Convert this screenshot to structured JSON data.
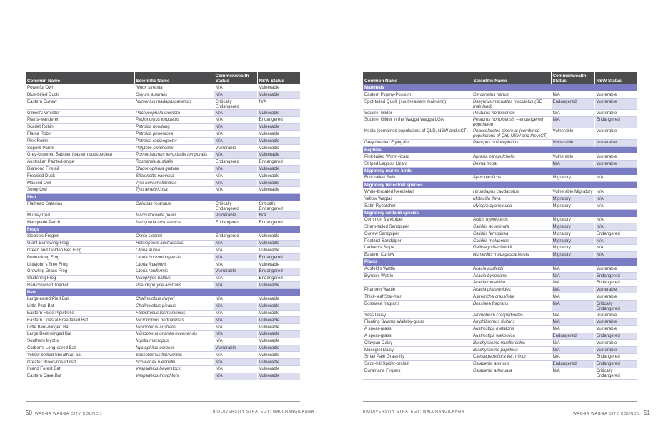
{
  "left_page": {
    "columns": [
      "Common Name",
      "Scientific Name",
      "Commonwealth Status",
      "NSW Status"
    ],
    "rows": [
      {
        "t": "r",
        "c": [
          "Powerful Owl",
          "Ninox strenua",
          "N/A",
          "Vulnerable"
        ]
      },
      {
        "t": "r",
        "c": [
          "Blue-billed Duck",
          "Oxyura australis",
          "N/A",
          "Vulnerable"
        ]
      },
      {
        "t": "r",
        "c": [
          "Eastern Curlew",
          "Numenius madagascariensis",
          "Critically Endangered",
          "N/A"
        ]
      },
      {
        "t": "r",
        "c": [
          "Gilbert's Whistler",
          "Pachycephala inornata",
          "N/A",
          "Vulnerable"
        ]
      },
      {
        "t": "r",
        "c": [
          "Plains-wanderer",
          "Pedionomus torquatus",
          "N/A",
          "Endangered"
        ]
      },
      {
        "t": "r",
        "c": [
          "Scarlet Robin",
          "Petroica boodang",
          "N/A",
          "Vulnerable"
        ]
      },
      {
        "t": "r",
        "c": [
          "Flame Robin",
          "Petroica phoenicea",
          "N/A",
          "Vulnerable"
        ]
      },
      {
        "t": "r",
        "c": [
          "Pink Robin",
          "Petroica rodinogaster",
          "N/A",
          "Vulnerable"
        ]
      },
      {
        "t": "r",
        "c": [
          "Superb Parrot",
          "Polytelis swainsonii",
          "Vulnerable",
          "Vulnerable"
        ]
      },
      {
        "t": "r",
        "c": [
          "Grey-crowned Babbler (eastern subspecies)",
          "Pomatostomus temporalis temporalis",
          "N/A",
          "Vulnerable"
        ]
      },
      {
        "t": "r",
        "c": [
          "Australian Painted-snipe",
          "Rostratula australis",
          "Endangered",
          "Endangered"
        ]
      },
      {
        "t": "r",
        "c": [
          "Diamond Firetail",
          "Stagonopleura guttata",
          "N/A",
          "Vulnerable"
        ]
      },
      {
        "t": "r",
        "c": [
          "Freckled Duck",
          "Stictonetta naevosa",
          "N/A",
          "Vulnerable"
        ]
      },
      {
        "t": "r",
        "c": [
          "Masked Owl",
          "Tyto novaehollandiae",
          "N/A",
          "Vulnerable"
        ]
      },
      {
        "t": "r",
        "c": [
          "Sooty Owl",
          "Tyto tenebricosa",
          "N/A",
          "Vulnerable"
        ]
      },
      {
        "t": "s",
        "c": [
          "Fish"
        ]
      },
      {
        "t": "r",
        "c": [
          "Flathead Galaxias",
          "Galaxias rostratus",
          "Critically Endangered",
          "Critically Endangered"
        ]
      },
      {
        "t": "r",
        "c": [
          "Murray Cod",
          "Maccullochella peelii",
          "Vulnerable",
          "N/A"
        ]
      },
      {
        "t": "r",
        "c": [
          "Macquarie Perch",
          "Macquaria australasica",
          "Endangered",
          "Endangered"
        ]
      },
      {
        "t": "s",
        "c": [
          "Frogs"
        ]
      },
      {
        "t": "r",
        "c": [
          "Sloane's Froglet",
          "Crinia sloanei",
          "Endangered",
          "Vulnerable"
        ]
      },
      {
        "t": "r",
        "c": [
          "Giant Burrowing Frog",
          "Heleioporus australiacus",
          "N/A",
          "Vulnerable"
        ]
      },
      {
        "t": "r",
        "c": [
          "Green and Golden Bell Frog",
          "Litoria aurea",
          "N/A",
          "Vulnerable"
        ]
      },
      {
        "t": "r",
        "c": [
          "Booroolong Frog",
          "Litoria booroolongensis",
          "N/A",
          "Endangered"
        ]
      },
      {
        "t": "r",
        "c": [
          "Littlejohn's Tree Frog",
          "Litoria littlejohni",
          "N/A",
          "Vulnerable"
        ]
      },
      {
        "t": "r",
        "c": [
          "Growling Grass Frog",
          "Litoria raniformis",
          "Vulnerable",
          "Endangered"
        ]
      },
      {
        "t": "r",
        "c": [
          "Stuttering Frog",
          "Mixophyes balbus",
          "N/A",
          "Endangered"
        ]
      },
      {
        "t": "r",
        "c": [
          "Red-crowned Toadlet",
          "Pseudophryne australis",
          "N/A",
          "Vulnerable"
        ]
      },
      {
        "t": "s",
        "c": [
          "Bats"
        ]
      },
      {
        "t": "r",
        "c": [
          "Large-eared Pied Bat",
          "Chalinolobus dwyeri",
          "N/A",
          "Vulnerable"
        ]
      },
      {
        "t": "r",
        "c": [
          "Little Pied Bat",
          "Chalinolobus picatus",
          "N/A",
          "Vulnerable"
        ]
      },
      {
        "t": "r",
        "c": [
          "Eastern False Pipistrelle",
          "Falsistrellus tasmaniensis",
          "N/A",
          "Vulnerable"
        ]
      },
      {
        "t": "r",
        "c": [
          "Eastern Coastal Free-tailed Bat",
          "Micronomus norfolkensis",
          "N/A",
          "Vulnerable"
        ]
      },
      {
        "t": "r",
        "c": [
          "Little Bent-winged Bat",
          "Miniopterus australis",
          "N/A",
          "Vulnerable"
        ]
      },
      {
        "t": "r",
        "c": [
          "Large Bent-winged Bat",
          "Miniopterus orianae oceanensis",
          "N/A",
          "Vulnerable"
        ]
      },
      {
        "t": "r",
        "c": [
          "Southern Myotis",
          "Myotis macropus",
          "N/A",
          "Vulnerable"
        ]
      },
      {
        "t": "r",
        "c": [
          "Corben's Long-eared Bat",
          "Nyctophilus corbeni",
          "Vulnerable",
          "Vulnerable"
        ]
      },
      {
        "t": "r",
        "c": [
          "Yellow-bellied Sheathtail-bat",
          "Saccolaimus flaviventris",
          "N/A",
          "Vulnerable"
        ]
      },
      {
        "t": "r",
        "c": [
          "Greater Broad-nosed Bat",
          "Scoteanax rueppellii",
          "N/A",
          "Vulnerable"
        ]
      },
      {
        "t": "r",
        "c": [
          "Inland Forest Bat",
          "Vespadelus baverstocki",
          "N/A",
          "Vulnerable"
        ]
      },
      {
        "t": "r",
        "c": [
          "Eastern Cave Bat",
          "Vespadelus troughtoni",
          "N/A",
          "Vulnerable"
        ]
      }
    ],
    "footer_number": "50",
    "footer_left": "WAGGA WAGGA CITY COUNCIL",
    "footer_right": "BIODIVERSITY STRATEGY: MALCHANGILANNA"
  },
  "right_page": {
    "columns": [
      "Common Name",
      "Scientific Name",
      "Commonwealth Status",
      "NSW Status"
    ],
    "rows": [
      {
        "t": "s",
        "c": [
          "Mammals"
        ]
      },
      {
        "t": "r",
        "c": [
          "Eastern Pygmy-Possum",
          "Cercartetus nanus",
          "N/A",
          "Vulnerable"
        ]
      },
      {
        "t": "r",
        "c": [
          "Spot-tailed Quoll, (southeastern mainland)",
          "Dasyurus maculatus maculatus (SE mainland)",
          "Endangered",
          "Vulnerable"
        ]
      },
      {
        "t": "r",
        "c": [
          "Squirrel Glider",
          "Petaurus norfolcensis",
          "N/A",
          "Vulnerable"
        ]
      },
      {
        "t": "r",
        "c": [
          "Squirrel Glider in the Wagga Wagga LGA",
          "Petaurus norfolcensis – endangered population",
          "N/A",
          "Endangered"
        ]
      },
      {
        "t": "r",
        "c": [
          "Koala (combined populations of QLD, NSW and ACT)",
          "Phascolarctos cinereus (combined populations of Qld, NSW and the ACT)",
          "Vulnerable",
          "Vulnerable"
        ]
      },
      {
        "t": "r",
        "c": [
          "Grey-headed Flying-fox",
          "Pteropus poliocephalus",
          "Vulnerable",
          "Vulnerable"
        ]
      },
      {
        "t": "s",
        "c": [
          "Reptiles"
        ]
      },
      {
        "t": "r",
        "c": [
          "Pink-tailed Worm-lizard",
          "Aprasia parapulchella",
          "Vulnerable",
          "Vulnerable"
        ]
      },
      {
        "t": "r",
        "c": [
          "Striped Legless Lizard",
          "Delma impar",
          "N/A",
          "Vulnerable"
        ]
      },
      {
        "t": "s",
        "c": [
          "Migratory marine birds"
        ]
      },
      {
        "t": "r",
        "c": [
          "Fork-tailed Swift",
          "Apus pacificus",
          "Migratory",
          "N/A"
        ]
      },
      {
        "t": "s",
        "c": [
          "Migratory terrestrial species"
        ]
      },
      {
        "t": "r",
        "c": [
          "White-throated Needletail",
          "Hirundapus caudacutus",
          "Vulnerable Migratory",
          "N/A"
        ]
      },
      {
        "t": "r",
        "c": [
          "Yellow Wagtail",
          "Motacilla flava",
          "Migratory",
          "N/A"
        ]
      },
      {
        "t": "r",
        "c": [
          "Satin Flycatcher",
          "Myiagra cyanoleuca",
          "Migratory",
          "N/A"
        ]
      },
      {
        "t": "s",
        "c": [
          "Migratory wetland species"
        ]
      },
      {
        "t": "r",
        "c": [
          "Common Sandpiper",
          "Actitis hypoleucos",
          "Migratory",
          "N/A"
        ]
      },
      {
        "t": "r",
        "c": [
          "Sharp-tailed Sandpiper",
          "Calidris acuminata",
          "Migratory",
          "N/A"
        ]
      },
      {
        "t": "r",
        "c": [
          "Curlew Sandpiper",
          "Calidris ferruginea",
          "Migratory",
          "Endangered"
        ]
      },
      {
        "t": "r",
        "c": [
          "Pectoral Sandpiper",
          "Calidris melanotos",
          "Migratory",
          "N/A"
        ]
      },
      {
        "t": "r",
        "c": [
          "Latham's Snipe",
          "Gallinago hardwickii",
          "Migratory",
          "N/A"
        ]
      },
      {
        "t": "r",
        "c": [
          "Eastern Curlew",
          "Numenius madagascariensis",
          "Migratory",
          "N/A"
        ]
      },
      {
        "t": "s",
        "c": [
          "Plants"
        ]
      },
      {
        "t": "r",
        "c": [
          "Ausfeld's Wattle",
          "Acacia ausfeldii",
          "N/A",
          "Vulnerable"
        ]
      },
      {
        "t": "r",
        "c": [
          "Bynoe's Wattle",
          "Acacia bynoeana",
          "N/A",
          "Endangered"
        ]
      },
      {
        "t": "r",
        "c": [
          "",
          "Acacia meiantha",
          "N/A",
          "Endangered"
        ]
      },
      {
        "t": "r",
        "c": [
          "Phantom Wattle",
          "Acacia phasmoides",
          "N/A",
          "Vulnerable"
        ]
      },
      {
        "t": "r",
        "c": [
          "Thick-leaf Star-hair",
          "Astrotricha crassifolia",
          "N/A",
          "Vulnerable"
        ]
      },
      {
        "t": "r",
        "c": [
          "Bossiaea fragrans",
          "Bossiaea fragrans",
          "N/A",
          "Critically Endangered"
        ]
      },
      {
        "t": "r",
        "c": [
          "Yass Daisy",
          "Ammobium craspedioides",
          "N/A",
          "Vulnerable"
        ]
      },
      {
        "t": "r",
        "c": [
          "Floating Swamp Wallaby-grass",
          "Amphibromus fluitans",
          "N/A",
          "Vulnerable"
        ]
      },
      {
        "t": "r",
        "c": [
          "A spear-grass",
          "Austrostipa metatoris",
          "N/A",
          "Vulnerable"
        ]
      },
      {
        "t": "r",
        "c": [
          "A spear-grass",
          "Austrostipa wakoolica",
          "Endangered",
          "Endangered"
        ]
      },
      {
        "t": "r",
        "c": [
          "Claypan Daisy",
          "Brachyscome muelleroides",
          "N/A",
          "Vulnerable"
        ]
      },
      {
        "t": "r",
        "c": [
          "Mossgiel Daisy",
          "Brachyscome papillosa",
          "N/A",
          "Vulnerable"
        ]
      },
      {
        "t": "r",
        "c": [
          "Small Pale Grass-lily",
          "Caesia parviflora var. minor",
          "N/A",
          "Endangered"
        ]
      },
      {
        "t": "r",
        "c": [
          "Sand-hill Spider-orchid",
          "Caladenia arenaria",
          "Endangered",
          "Endangered"
        ]
      },
      {
        "t": "r",
        "c": [
          "Duramana Fingers",
          "Caladenia attenuata",
          "N/A",
          "Critically Endangered"
        ]
      }
    ],
    "footer_left": "BIODIVERSITY STRATEGY: MALCHANGILANNA",
    "footer_right": "WAGGA WAGGA CITY COUNCIL",
    "footer_number": "51"
  },
  "colors": {
    "header_bg": "#4d4d4f",
    "section_bg": "#7b7dc4",
    "status_cell_bg": "#dcdef0"
  }
}
